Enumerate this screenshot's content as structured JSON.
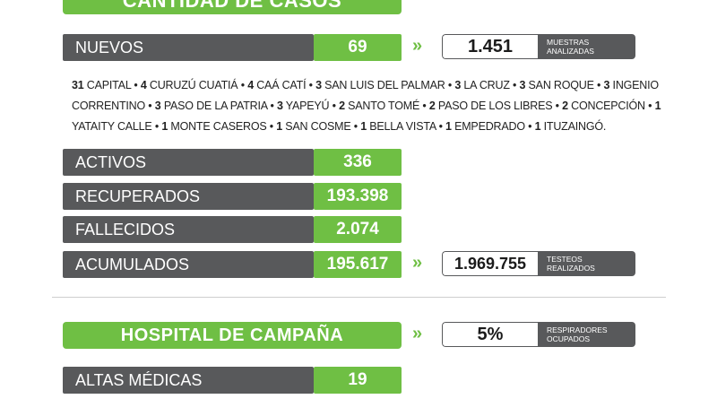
{
  "header": {
    "title": "CANTIDAD DE CASOS"
  },
  "nuevos": {
    "label": "NUEVOS",
    "value": "69"
  },
  "muestras": {
    "value": "1.451",
    "line1": "MUESTRAS",
    "line2": "ANALIZADAS"
  },
  "towns": [
    {
      "n": "31",
      "name": "CAPITAL"
    },
    {
      "n": "4",
      "name": "CURUZÚ CUATIÁ"
    },
    {
      "n": "4",
      "name": "CAÁ CATÍ"
    },
    {
      "n": "3",
      "name": "SAN LUIS DEL PALMAR"
    },
    {
      "n": "3",
      "name": "LA CRUZ"
    },
    {
      "n": "3",
      "name": "SAN ROQUE"
    },
    {
      "n": "3",
      "name": "INGENIO CORRENTINO"
    },
    {
      "n": "3",
      "name": "PASO DE LA PATRIA"
    },
    {
      "n": "3",
      "name": "YAPEYÚ"
    },
    {
      "n": "2",
      "name": "SANTO TOMÉ"
    },
    {
      "n": "2",
      "name": "PASO DE LOS LIBRES"
    },
    {
      "n": "2",
      "name": "CONCEPCIÓN"
    },
    {
      "n": "1",
      "name": "YATAITY CALLE"
    },
    {
      "n": "1",
      "name": "MONTE CASEROS"
    },
    {
      "n": "1",
      "name": "SAN COSME"
    },
    {
      "n": "1",
      "name": "BELLA VISTA"
    },
    {
      "n": "1",
      "name": "EMPEDRADO"
    },
    {
      "n": "1",
      "name": "ITUZAINGÓ."
    }
  ],
  "stats": {
    "activos": {
      "label": "ACTIVOS",
      "value": "336"
    },
    "recuperados": {
      "label": "RECUPERADOS",
      "value": "193.398"
    },
    "fallecidos": {
      "label": "FALLECIDOS",
      "value": "2.074"
    },
    "acumulados": {
      "label": "ACUMULADOS",
      "value": "195.617"
    }
  },
  "testeos": {
    "value": "1.969.755",
    "line1": "TESTEOS",
    "line2": "REALIZADOS"
  },
  "hospital": {
    "title": "HOSPITAL DE CAMPAÑA"
  },
  "respiradores": {
    "value": "5%",
    "line1": "RESPIRADORES",
    "line2": "OCUPADOS"
  },
  "altas": {
    "label": "ALTAS MÉDICAS",
    "value": "19"
  },
  "arrow_glyph": "»",
  "colors": {
    "green": "#6fbf44",
    "dark": "#58595b"
  }
}
